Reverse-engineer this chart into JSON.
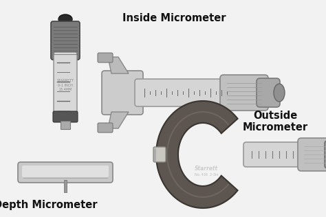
{
  "background_color": "#f0f0f0",
  "labels": {
    "depth": "Depth Micrometer",
    "inside": "Inside Micrometer",
    "outside": "Outside\nMicrometer"
  },
  "label_positions_axes": {
    "depth": [
      0.14,
      0.055
    ],
    "inside": [
      0.535,
      0.915
    ],
    "outside": [
      0.845,
      0.44
    ]
  },
  "label_fontsize": 10.5,
  "label_fontweight": "bold",
  "label_color": "#111111",
  "label_ha": {
    "depth": "center",
    "inside": "center",
    "outside": "center"
  }
}
